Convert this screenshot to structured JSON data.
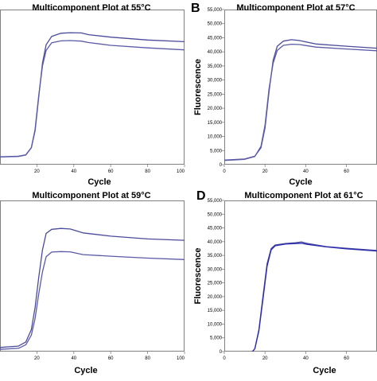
{
  "chart_data": [
    {
      "type": "line",
      "panel": "",
      "title": "Multicomponent Plot at 55°C",
      "xlabel": "Cycle",
      "ylabel": "",
      "xlim": [
        0,
        100
      ],
      "ylim": [
        0,
        55000
      ],
      "x_ticks": [
        "20",
        "40",
        "60",
        "80",
        "100"
      ],
      "y_ticks": [],
      "series": [
        {
          "color": "#4a4a9a",
          "points": [
            [
              0,
              2800
            ],
            [
              10,
              3000
            ],
            [
              14,
              3500
            ],
            [
              17,
              6000
            ],
            [
              19,
              12000
            ],
            [
              21,
              24000
            ],
            [
              23,
              36000
            ],
            [
              25,
              42500
            ],
            [
              28,
              45500
            ],
            [
              33,
              46600
            ],
            [
              38,
              46800
            ],
            [
              44,
              46700
            ],
            [
              48,
              46100
            ],
            [
              60,
              45200
            ],
            [
              80,
              44200
            ],
            [
              100,
              43600
            ]
          ]
        },
        {
          "color": "#5a5aa8",
          "points": [
            [
              0,
              2700
            ],
            [
              10,
              2900
            ],
            [
              14,
              3400
            ],
            [
              17,
              6000
            ],
            [
              19,
              12500
            ],
            [
              21,
              24500
            ],
            [
              23,
              35000
            ],
            [
              25,
              40500
            ],
            [
              28,
              43200
            ],
            [
              33,
              43900
            ],
            [
              38,
              44000
            ],
            [
              44,
              43800
            ],
            [
              48,
              43300
            ],
            [
              60,
              42300
            ],
            [
              80,
              41400
            ],
            [
              100,
              40700
            ]
          ]
        },
        {
          "color": "#2a2a9a",
          "points": [
            [
              0,
              -400
            ],
            [
              10,
              -400
            ],
            [
              14,
              -600
            ],
            [
              18,
              -1500
            ]
          ]
        }
      ]
    },
    {
      "type": "line",
      "panel": "B",
      "title": "Multicomponent Plot at 57°C",
      "xlabel": "Cycle",
      "ylabel": "Fluorescence",
      "xlim": [
        0,
        75
      ],
      "ylim": [
        0,
        55000
      ],
      "x_ticks": [
        "0",
        "20",
        "40",
        "60"
      ],
      "y_ticks": [
        "0",
        "5,000",
        "10,000",
        "15,000",
        "20,000",
        "25,000",
        "30,000",
        "35,000",
        "40,000",
        "45,000",
        "50,000",
        "55,000"
      ],
      "series": [
        {
          "color": "#4a4a9a",
          "points": [
            [
              0,
              1600
            ],
            [
              10,
              2000
            ],
            [
              15,
              3000
            ],
            [
              18,
              6000
            ],
            [
              20,
              13000
            ],
            [
              22,
              26000
            ],
            [
              24,
              37000
            ],
            [
              26,
              42000
            ],
            [
              29,
              43800
            ],
            [
              33,
              44300
            ],
            [
              37,
              44000
            ],
            [
              45,
              42800
            ],
            [
              60,
              42000
            ],
            [
              75,
              41300
            ]
          ]
        },
        {
          "color": "#5a5aa8",
          "points": [
            [
              0,
              1500
            ],
            [
              10,
              1900
            ],
            [
              15,
              2900
            ],
            [
              18,
              6500
            ],
            [
              20,
              14000
            ],
            [
              22,
              27000
            ],
            [
              24,
              36000
            ],
            [
              26,
              40500
            ],
            [
              29,
              42300
            ],
            [
              33,
              42700
            ],
            [
              37,
              42600
            ],
            [
              45,
              41700
            ],
            [
              60,
              41000
            ],
            [
              75,
              40400
            ]
          ]
        },
        {
          "color": "#2a2a9a",
          "points": [
            [
              0,
              -300
            ],
            [
              12,
              -300
            ],
            [
              16,
              -600
            ],
            [
              19,
              -1200
            ]
          ]
        }
      ]
    },
    {
      "type": "line",
      "panel": "",
      "title": "Multicomponent Plot at 59°C",
      "xlabel": "Cycle",
      "ylabel": "",
      "xlim": [
        0,
        100
      ],
      "ylim": [
        0,
        55000
      ],
      "x_ticks": [
        "20",
        "40",
        "60",
        "80",
        "100"
      ],
      "y_ticks": [],
      "series": [
        {
          "color": "#4a4a9a",
          "points": [
            [
              0,
              1500
            ],
            [
              10,
              2000
            ],
            [
              14,
              3500
            ],
            [
              17,
              8000
            ],
            [
              19,
              16000
            ],
            [
              21,
              27000
            ],
            [
              23,
              37000
            ],
            [
              25,
              43000
            ],
            [
              28,
              44500
            ],
            [
              33,
              44800
            ],
            [
              38,
              44600
            ],
            [
              45,
              43200
            ],
            [
              60,
              42000
            ],
            [
              80,
              41000
            ],
            [
              100,
              40500
            ]
          ]
        },
        {
          "color": "#5a5aa8",
          "points": [
            [
              0,
              800
            ],
            [
              10,
              1200
            ],
            [
              14,
              2500
            ],
            [
              17,
              6000
            ],
            [
              19,
              12000
            ],
            [
              21,
              21000
            ],
            [
              23,
              29000
            ],
            [
              25,
              34500
            ],
            [
              28,
              36200
            ],
            [
              33,
              36400
            ],
            [
              38,
              36300
            ],
            [
              45,
              35300
            ],
            [
              60,
              34700
            ],
            [
              80,
              34000
            ],
            [
              100,
              33500
            ]
          ]
        },
        {
          "color": "#2a2a9a",
          "points": [
            [
              0,
              -200
            ],
            [
              12,
              -200
            ],
            [
              16,
              -600
            ]
          ]
        }
      ]
    },
    {
      "type": "line",
      "panel": "D",
      "title": "Multicomponent Plot at 61°C",
      "xlabel": "Cycle",
      "ylabel": "Fluorescence",
      "xlim": [
        0,
        75
      ],
      "ylim": [
        0,
        55000
      ],
      "x_ticks": [
        "0",
        "20",
        "40",
        "60"
      ],
      "y_ticks": [
        "0",
        "5,000",
        "10,000",
        "15,000",
        "20,000",
        "25,000",
        "30,000",
        "35,000",
        "40,000",
        "45,000",
        "50,000",
        "55,000"
      ],
      "series": [
        {
          "color": "#4a4a9a",
          "points": [
            [
              0,
              -1500
            ],
            [
              12,
              -1500
            ],
            [
              15,
              1000
            ],
            [
              17,
              8000
            ],
            [
              19,
              20000
            ],
            [
              21,
              32000
            ],
            [
              23,
              37500
            ],
            [
              25,
              38800
            ],
            [
              30,
              39300
            ],
            [
              35,
              39600
            ],
            [
              38,
              39900
            ],
            [
              41,
              39300
            ],
            [
              50,
              38200
            ],
            [
              60,
              37600
            ],
            [
              75,
              36800
            ]
          ]
        },
        {
          "color": "#2a2ab0",
          "points": [
            [
              0,
              -1500
            ],
            [
              12,
              -1500
            ],
            [
              15,
              1000
            ],
            [
              17,
              7500
            ],
            [
              19,
              19000
            ],
            [
              21,
              31000
            ],
            [
              23,
              37000
            ],
            [
              25,
              38500
            ],
            [
              30,
              39100
            ],
            [
              35,
              39300
            ],
            [
              38,
              39400
            ],
            [
              41,
              39000
            ],
            [
              50,
              38100
            ],
            [
              60,
              37400
            ],
            [
              75,
              36600
            ]
          ]
        }
      ]
    }
  ]
}
